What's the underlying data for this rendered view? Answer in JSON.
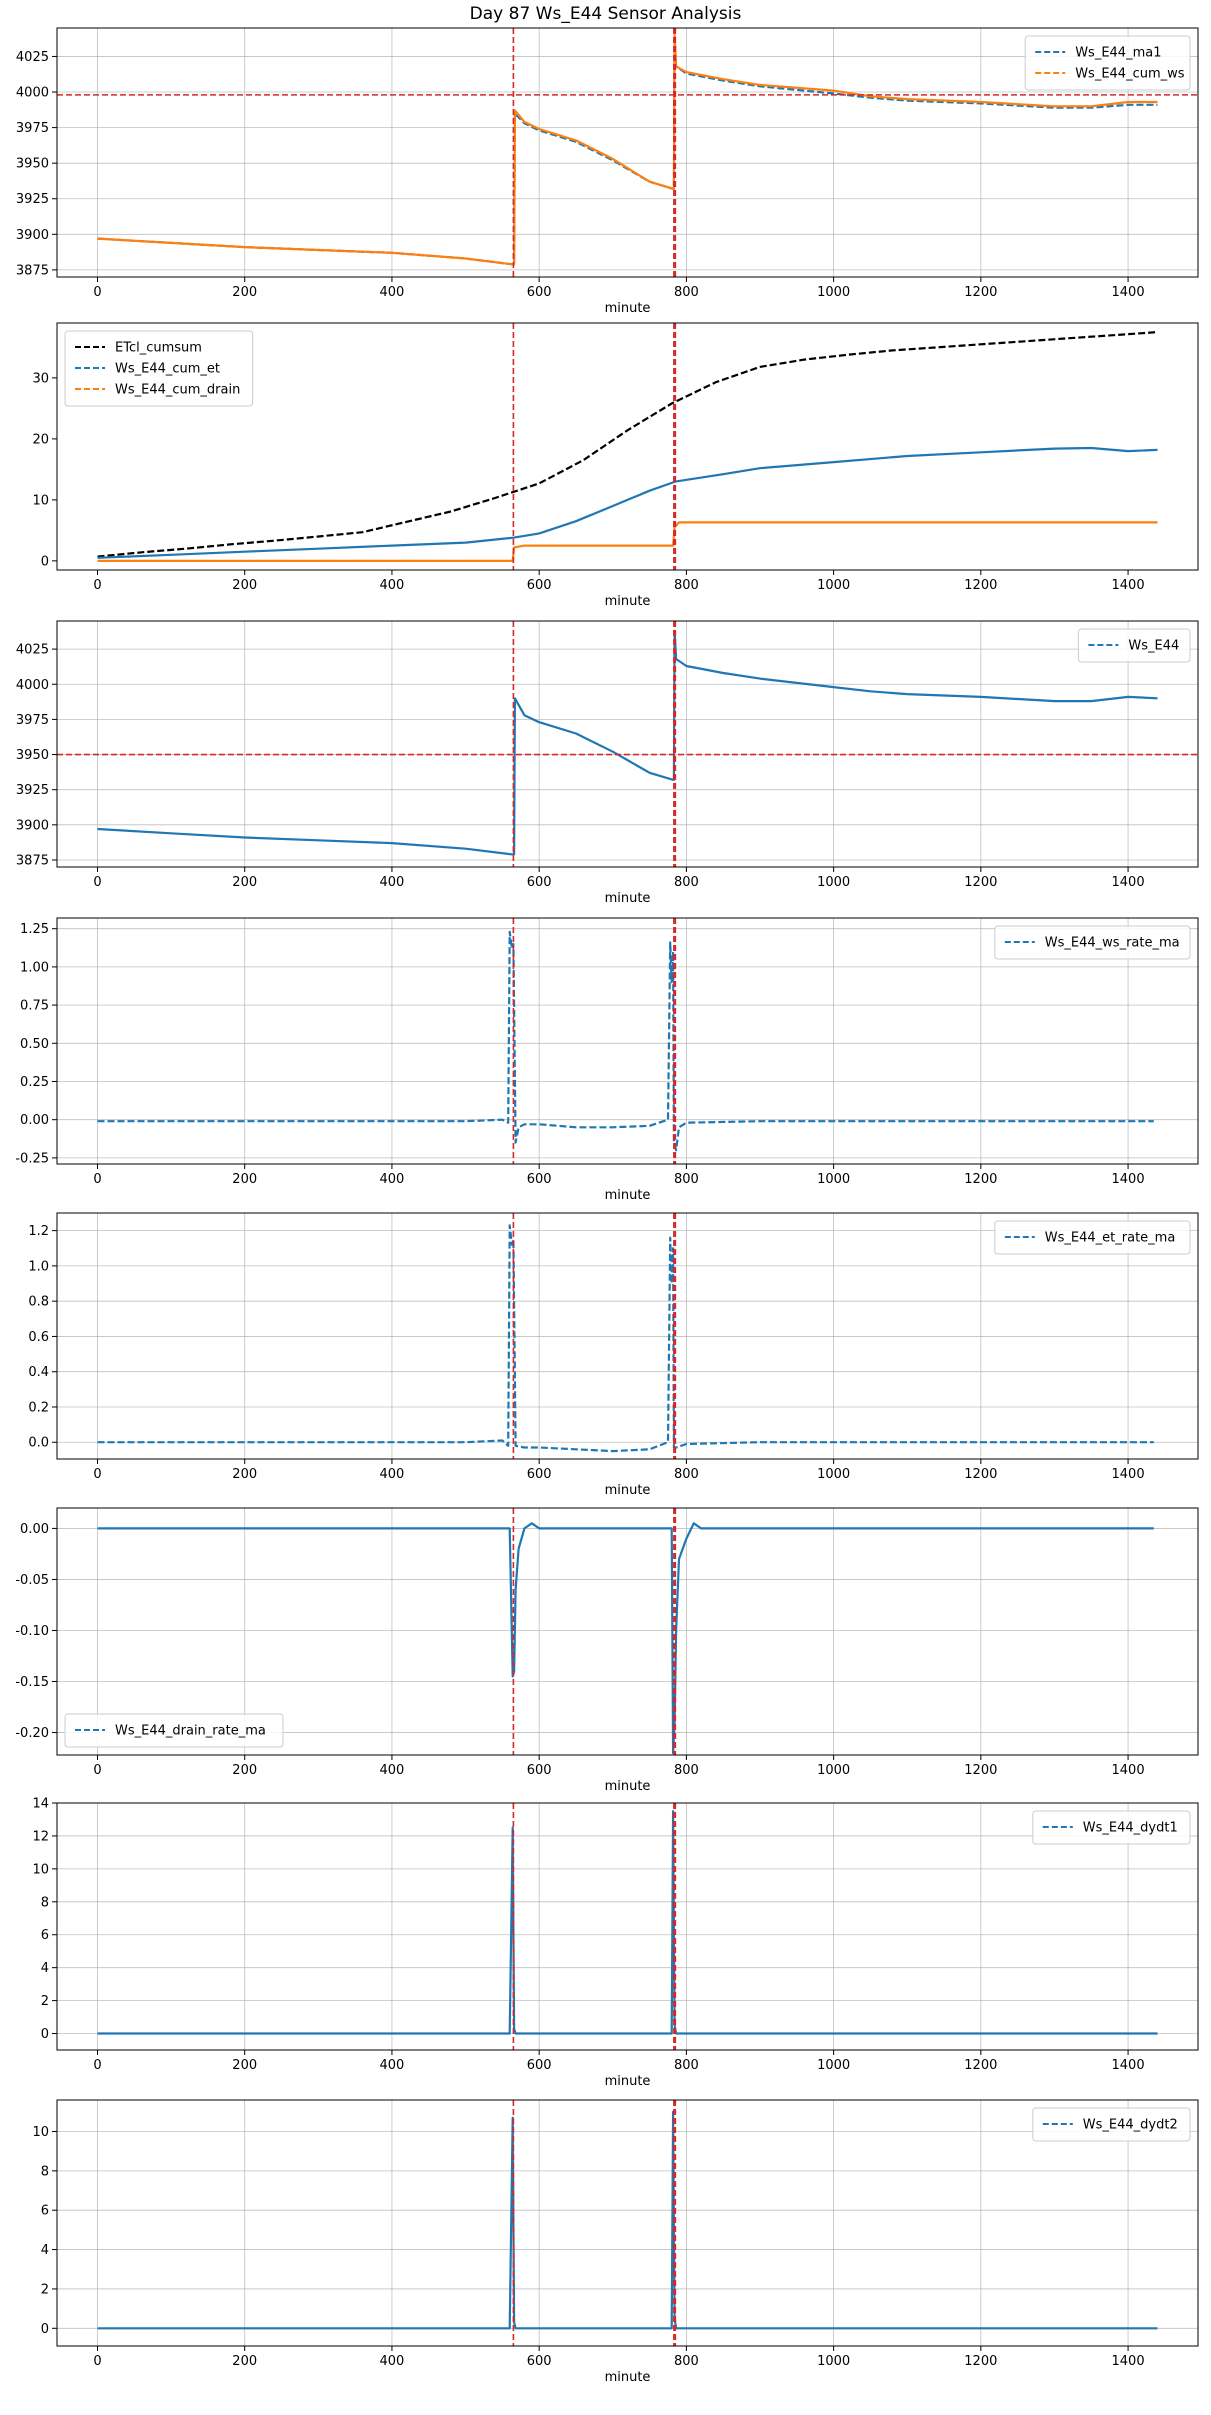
{
  "figure": {
    "title": "Day 87 Ws_E44 Sensor Analysis"
  },
  "chart_data": [
    {
      "type": "line",
      "xlabel": "minute",
      "xlim": [
        -55,
        1495
      ],
      "ylim": [
        3870,
        4045
      ],
      "xticks": [
        0,
        200,
        400,
        600,
        800,
        1000,
        1200,
        1400
      ],
      "yticks": [
        3875,
        3900,
        3925,
        3950,
        3975,
        4000,
        4025
      ],
      "grid": true,
      "legend": "top-right",
      "vlines": [
        565,
        783,
        785
      ],
      "hlines": [
        3998
      ],
      "series": [
        {
          "name": "Ws_E44_ma1",
          "color": "#1f77b4",
          "style": "dashed",
          "x": [
            0,
            100,
            200,
            300,
            400,
            500,
            562,
            566,
            567,
            580,
            600,
            650,
            700,
            750,
            782,
            783,
            784,
            786,
            800,
            850,
            900,
            1000,
            1050,
            1100,
            1200,
            1300,
            1350,
            1400,
            1440
          ],
          "y": [
            3897,
            3894,
            3891,
            3889,
            3887,
            3883,
            3879,
            3879,
            3985,
            3978,
            3973,
            3965,
            3952,
            3937,
            3932,
            3932,
            4038,
            4018,
            4013,
            4008,
            4004,
            3999,
            3996,
            3994,
            3992,
            3989,
            3989,
            3991,
            3991
          ]
        },
        {
          "name": "Ws_E44_cum_ws",
          "color": "#ff7f0e",
          "style": "solid",
          "x": [
            0,
            100,
            200,
            300,
            400,
            500,
            562,
            566,
            567,
            580,
            600,
            650,
            700,
            750,
            782,
            783,
            784,
            786,
            800,
            850,
            900,
            1000,
            1050,
            1100,
            1200,
            1300,
            1350,
            1400,
            1440
          ],
          "y": [
            3897,
            3894,
            3891,
            3889,
            3887,
            3883,
            3879,
            3879,
            3987,
            3979,
            3974,
            3966,
            3953,
            3937,
            3932,
            3932,
            4040,
            4018,
            4014,
            4009,
            4005,
            4001,
            3997,
            3995,
            3993,
            3990,
            3990,
            3993,
            3993
          ]
        }
      ]
    },
    {
      "type": "line",
      "xlabel": "minute",
      "xlim": [
        -55,
        1495
      ],
      "ylim": [
        -1.5,
        39
      ],
      "xticks": [
        0,
        200,
        400,
        600,
        800,
        1000,
        1200,
        1400
      ],
      "yticks": [
        0,
        10,
        20,
        30
      ],
      "grid": false,
      "legend": "top-left",
      "vlines": [
        565,
        783,
        785
      ],
      "hlines": [],
      "series": [
        {
          "name": "ETcl_cumsum",
          "color": "#000000",
          "style": "dashed",
          "x": [
            0,
            60,
            120,
            180,
            240,
            300,
            360,
            420,
            480,
            540,
            600,
            660,
            720,
            780,
            840,
            900,
            960,
            1020,
            1080,
            1140,
            1200,
            1260,
            1320,
            1380,
            1440
          ],
          "y": [
            0.7,
            1.4,
            2.0,
            2.7,
            3.3,
            4.0,
            4.7,
            6.4,
            8.1,
            10.3,
            12.7,
            16.5,
            21.4,
            25.8,
            29.3,
            31.8,
            33.0,
            33.8,
            34.5,
            35.0,
            35.5,
            36.0,
            36.5,
            37.0,
            37.5
          ]
        },
        {
          "name": "Ws_E44_cum_et",
          "color": "#1f77b4",
          "style": "solid",
          "x": [
            0,
            100,
            200,
            300,
            400,
            500,
            565,
            600,
            650,
            700,
            750,
            785,
            850,
            900,
            1000,
            1100,
            1200,
            1300,
            1350,
            1400,
            1440
          ],
          "y": [
            0.5,
            1.0,
            1.5,
            2.0,
            2.5,
            3.0,
            3.8,
            4.5,
            6.5,
            9.0,
            11.5,
            13.0,
            14.2,
            15.2,
            16.2,
            17.2,
            17.8,
            18.4,
            18.5,
            18.0,
            18.2
          ]
        },
        {
          "name": "Ws_E44_cum_drain",
          "color": "#ff7f0e",
          "style": "solid",
          "x": [
            0,
            564,
            566,
            580,
            782,
            784,
            790,
            800,
            1440
          ],
          "y": [
            0,
            0,
            2.2,
            2.5,
            2.5,
            5.5,
            6.3,
            6.3,
            6.3
          ]
        }
      ]
    },
    {
      "type": "line",
      "xlabel": "minute",
      "xlim": [
        -55,
        1495
      ],
      "ylim": [
        3870,
        4045
      ],
      "xticks": [
        0,
        200,
        400,
        600,
        800,
        1000,
        1200,
        1400
      ],
      "yticks": [
        3875,
        3900,
        3925,
        3950,
        3975,
        4000,
        4025
      ],
      "grid": true,
      "legend": "top-right",
      "vlines": [
        565,
        783,
        785
      ],
      "hlines": [
        3950
      ],
      "series": [
        {
          "name": "Ws_E44",
          "color": "#1f77b4",
          "style": "solid",
          "x": [
            0,
            100,
            200,
            300,
            400,
            500,
            562,
            566,
            567,
            580,
            600,
            650,
            700,
            750,
            782,
            783,
            784,
            786,
            800,
            850,
            900,
            1000,
            1050,
            1100,
            1200,
            1300,
            1350,
            1400,
            1440
          ],
          "y": [
            3897,
            3894,
            3891,
            3889,
            3887,
            3883,
            3879,
            3879,
            3990,
            3978,
            3973,
            3965,
            3952,
            3937,
            3932,
            3932,
            4038,
            4018,
            4013,
            4008,
            4004,
            3998,
            3995,
            3993,
            3991,
            3988,
            3988,
            3991,
            3990
          ]
        }
      ]
    },
    {
      "type": "line",
      "xlabel": "minute",
      "xlim": [
        -55,
        1495
      ],
      "ylim": [
        -0.29,
        1.32
      ],
      "xticks": [
        0,
        200,
        400,
        600,
        800,
        1000,
        1200,
        1400
      ],
      "yticks": [
        -0.25,
        0,
        0.25,
        0.5,
        0.75,
        1.0,
        1.25
      ],
      "grid": true,
      "legend": "top-right",
      "vlines": [
        565,
        783,
        785
      ],
      "hlines": [],
      "series": [
        {
          "name": "Ws_E44_ws_rate_ma",
          "color": "#1f77b4",
          "style": "dashed",
          "x": [
            0,
            100,
            200,
            300,
            400,
            500,
            550,
            558,
            560,
            563,
            565,
            568,
            572,
            580,
            600,
            650,
            700,
            750,
            775,
            778,
            780,
            782,
            783,
            786,
            790,
            800,
            900,
            1000,
            1100,
            1200,
            1300,
            1400,
            1435
          ],
          "y": [
            -0.01,
            -0.01,
            -0.01,
            -0.01,
            -0.01,
            -0.01,
            0.0,
            -0.02,
            1.23,
            1.12,
            1.15,
            -0.15,
            -0.05,
            -0.03,
            -0.03,
            -0.05,
            -0.05,
            -0.04,
            0.0,
            1.16,
            0.9,
            1.1,
            -0.15,
            -0.2,
            -0.05,
            -0.02,
            -0.01,
            -0.01,
            -0.01,
            -0.01,
            -0.01,
            -0.01,
            -0.01
          ]
        }
      ]
    },
    {
      "type": "line",
      "xlabel": "minute",
      "xlim": [
        -55,
        1495
      ],
      "ylim": [
        -0.095,
        1.3
      ],
      "xticks": [
        0,
        200,
        400,
        600,
        800,
        1000,
        1200,
        1400
      ],
      "yticks": [
        0,
        0.2,
        0.4,
        0.6,
        0.8,
        1.0,
        1.2
      ],
      "grid": true,
      "legend": "top-right",
      "vlines": [
        565,
        783,
        785
      ],
      "hlines": [],
      "series": [
        {
          "name": "Ws_E44_et_rate_ma",
          "color": "#1f77b4",
          "style": "dashed",
          "x": [
            0,
            100,
            200,
            300,
            400,
            500,
            550,
            558,
            560,
            563,
            565,
            568,
            580,
            600,
            650,
            700,
            750,
            775,
            778,
            780,
            782,
            783,
            786,
            800,
            900,
            1000,
            1100,
            1200,
            1300,
            1400,
            1435
          ],
          "y": [
            0,
            0,
            0,
            0,
            0,
            0,
            0.01,
            -0.02,
            1.23,
            1.12,
            1.15,
            -0.02,
            -0.03,
            -0.03,
            -0.04,
            -0.05,
            -0.04,
            0.0,
            1.16,
            0.9,
            1.1,
            -0.03,
            -0.03,
            -0.01,
            0,
            0,
            0,
            0,
            0,
            0,
            0
          ]
        }
      ]
    },
    {
      "type": "line",
      "xlabel": "minute",
      "xlim": [
        -55,
        1495
      ],
      "ylim": [
        -0.222,
        0.02
      ],
      "xticks": [
        0,
        200,
        400,
        600,
        800,
        1000,
        1200,
        1400
      ],
      "yticks": [
        -0.2,
        -0.15,
        -0.1,
        -0.05,
        0.0
      ],
      "grid": true,
      "legend": "bottom-left",
      "vlines": [
        565,
        783,
        785
      ],
      "hlines": [],
      "series": [
        {
          "name": "Ws_E44_drain_rate_ma",
          "color": "#1f77b4",
          "style": "solid",
          "x": [
            0,
            560,
            564,
            566,
            568,
            572,
            580,
            590,
            600,
            610,
            780,
            782,
            784,
            786,
            790,
            800,
            810,
            820,
            830,
            1435
          ],
          "y": [
            0,
            0,
            -0.145,
            -0.14,
            -0.06,
            -0.02,
            0.0,
            0.005,
            0.0,
            0,
            0,
            -0.22,
            -0.19,
            -0.1,
            -0.03,
            -0.01,
            0.005,
            0.0,
            0,
            0
          ]
        }
      ]
    },
    {
      "type": "line",
      "xlabel": "minute",
      "xlim": [
        -55,
        1495
      ],
      "ylim": [
        -1,
        14
      ],
      "xticks": [
        0,
        200,
        400,
        600,
        800,
        1000,
        1200,
        1400
      ],
      "yticks": [
        0,
        2,
        4,
        6,
        8,
        10,
        12,
        14
      ],
      "grid": true,
      "legend": "top-right",
      "vlines": [
        565,
        783,
        785
      ],
      "hlines": [],
      "series": [
        {
          "name": "Ws_E44_dydt1",
          "color": "#1f77b4",
          "style": "solid",
          "x": [
            0,
            100,
            200,
            300,
            400,
            500,
            560,
            564,
            566,
            568,
            600,
            700,
            780,
            782,
            784,
            786,
            800,
            900,
            1000,
            1100,
            1200,
            1300,
            1400,
            1440
          ],
          "y": [
            0,
            0,
            0,
            0,
            0,
            0,
            0,
            12.5,
            0.3,
            0,
            0,
            0,
            0,
            13.5,
            0.5,
            0,
            0,
            0,
            0,
            0,
            0,
            0,
            0,
            0
          ]
        }
      ]
    },
    {
      "type": "line",
      "xlabel": "minute",
      "xlim": [
        -55,
        1495
      ],
      "ylim": [
        -0.9,
        11.6
      ],
      "xticks": [
        0,
        200,
        400,
        600,
        800,
        1000,
        1200,
        1400
      ],
      "yticks": [
        0,
        2,
        4,
        6,
        8,
        10
      ],
      "grid": true,
      "legend": "top-right",
      "vlines": [
        565,
        783,
        785
      ],
      "hlines": [],
      "series": [
        {
          "name": "Ws_E44_dydt2",
          "color": "#1f77b4",
          "style": "solid",
          "x": [
            0,
            100,
            200,
            300,
            400,
            500,
            560,
            564,
            566,
            568,
            600,
            700,
            780,
            782,
            784,
            786,
            800,
            900,
            1000,
            1100,
            1200,
            1300,
            1400,
            1440
          ],
          "y": [
            0,
            0,
            0,
            0,
            0,
            0,
            0,
            10.7,
            0.3,
            0,
            0,
            0,
            0,
            11.0,
            0.5,
            0,
            0,
            0,
            0,
            0,
            0,
            0,
            0,
            0
          ]
        }
      ]
    }
  ]
}
